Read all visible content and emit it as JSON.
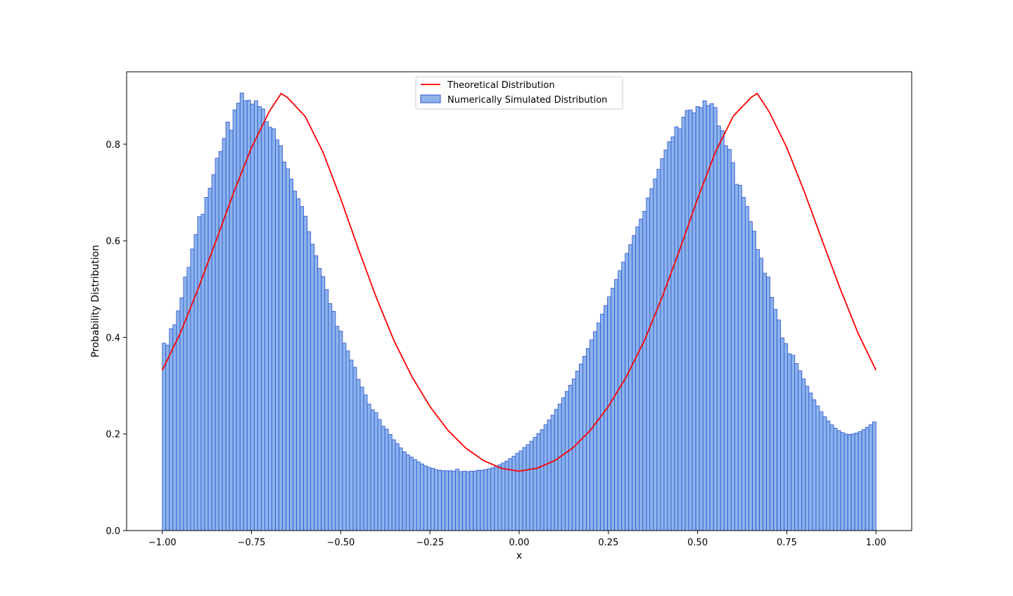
{
  "chart_data": {
    "type": "bar",
    "xlabel": "x",
    "ylabel": "Probability Distribution",
    "xlim": [
      -1.1,
      1.1
    ],
    "ylim": [
      0,
      0.95
    ],
    "x_ticks": [
      "−1.00",
      "−0.75",
      "−0.50",
      "−0.25",
      "0.00",
      "0.25",
      "0.50",
      "0.75",
      "1.00"
    ],
    "x_tick_values": [
      -1.0,
      -0.75,
      -0.5,
      -0.25,
      0.0,
      0.25,
      0.5,
      0.75,
      1.0
    ],
    "y_ticks": [
      "0.0",
      "0.2",
      "0.4",
      "0.6",
      "0.8"
    ],
    "y_tick_values": [
      0.0,
      0.2,
      0.4,
      0.6,
      0.8
    ],
    "grid": false,
    "legend_position": "top-center",
    "legend": {
      "theoretical": "Theoretical Distribution",
      "simulated": "Numerically Simulated Distribution"
    },
    "series": [
      {
        "name": "Numerically Simulated Distribution",
        "kind": "histogram",
        "bin_range": [
          -1.0,
          1.0
        ],
        "bin_count": 200,
        "fill_color": "#8cb4ea",
        "edge_color": "#2b4fd6",
        "values": [
          0.388,
          0.384,
          0.418,
          0.426,
          0.455,
          0.482,
          0.525,
          0.545,
          0.583,
          0.613,
          0.65,
          0.655,
          0.69,
          0.709,
          0.737,
          0.771,
          0.785,
          0.812,
          0.846,
          0.829,
          0.871,
          0.885,
          0.906,
          0.89,
          0.891,
          0.883,
          0.89,
          0.878,
          0.873,
          0.847,
          0.835,
          0.832,
          0.809,
          0.797,
          0.763,
          0.749,
          0.728,
          0.703,
          0.687,
          0.671,
          0.651,
          0.619,
          0.593,
          0.569,
          0.543,
          0.526,
          0.499,
          0.47,
          0.454,
          0.423,
          0.413,
          0.388,
          0.372,
          0.353,
          0.338,
          0.313,
          0.297,
          0.281,
          0.262,
          0.25,
          0.244,
          0.23,
          0.216,
          0.21,
          0.199,
          0.188,
          0.18,
          0.171,
          0.163,
          0.157,
          0.152,
          0.147,
          0.142,
          0.138,
          0.134,
          0.131,
          0.129,
          0.126,
          0.125,
          0.124,
          0.124,
          0.124,
          0.123,
          0.127,
          0.122,
          0.123,
          0.122,
          0.123,
          0.123,
          0.125,
          0.125,
          0.126,
          0.128,
          0.13,
          0.133,
          0.136,
          0.14,
          0.144,
          0.149,
          0.154,
          0.16,
          0.165,
          0.172,
          0.178,
          0.185,
          0.193,
          0.201,
          0.209,
          0.219,
          0.229,
          0.239,
          0.251,
          0.262,
          0.275,
          0.288,
          0.301,
          0.314,
          0.33,
          0.345,
          0.361,
          0.377,
          0.395,
          0.412,
          0.43,
          0.448,
          0.466,
          0.484,
          0.502,
          0.52,
          0.538,
          0.556,
          0.574,
          0.592,
          0.611,
          0.629,
          0.645,
          0.661,
          0.689,
          0.708,
          0.728,
          0.748,
          0.77,
          0.788,
          0.805,
          0.815,
          0.836,
          0.832,
          0.856,
          0.87,
          0.871,
          0.865,
          0.878,
          0.876,
          0.89,
          0.88,
          0.884,
          0.876,
          0.838,
          0.828,
          0.797,
          0.789,
          0.762,
          0.717,
          0.715,
          0.69,
          0.671,
          0.64,
          0.62,
          0.582,
          0.564,
          0.533,
          0.525,
          0.483,
          0.458,
          0.436,
          0.399,
          0.387,
          0.366,
          0.363,
          0.346,
          0.331,
          0.314,
          0.299,
          0.285,
          0.271,
          0.258,
          0.246,
          0.236,
          0.227,
          0.219,
          0.212,
          0.207,
          0.203,
          0.2,
          0.199,
          0.2,
          0.202,
          0.205,
          0.209,
          0.214,
          0.219,
          0.225
        ]
      },
      {
        "name": "Theoretical Distribution",
        "kind": "line",
        "color": "#ff0000",
        "x": [
          -1.0,
          -0.95,
          -0.9,
          -0.85,
          -0.8,
          -0.75,
          -0.7,
          -0.667,
          -0.65,
          -0.6,
          -0.55,
          -0.5,
          -0.45,
          -0.4,
          -0.35,
          -0.3,
          -0.25,
          -0.2,
          -0.15,
          -0.1,
          -0.05,
          0.0,
          0.05,
          0.1,
          0.15,
          0.2,
          0.25,
          0.3,
          0.35,
          0.4,
          0.45,
          0.5,
          0.55,
          0.6,
          0.65,
          0.667,
          0.7,
          0.75,
          0.8,
          0.85,
          0.9,
          0.95,
          1.0
        ],
        "y": [
          0.332,
          0.408,
          0.5,
          0.599,
          0.7,
          0.793,
          0.868,
          0.905,
          0.897,
          0.858,
          0.784,
          0.687,
          0.582,
          0.482,
          0.392,
          0.318,
          0.257,
          0.208,
          0.171,
          0.145,
          0.129,
          0.123,
          0.129,
          0.145,
          0.171,
          0.208,
          0.257,
          0.318,
          0.392,
          0.482,
          0.582,
          0.687,
          0.784,
          0.858,
          0.897,
          0.905,
          0.868,
          0.793,
          0.7,
          0.599,
          0.5,
          0.408,
          0.332
        ]
      }
    ]
  }
}
